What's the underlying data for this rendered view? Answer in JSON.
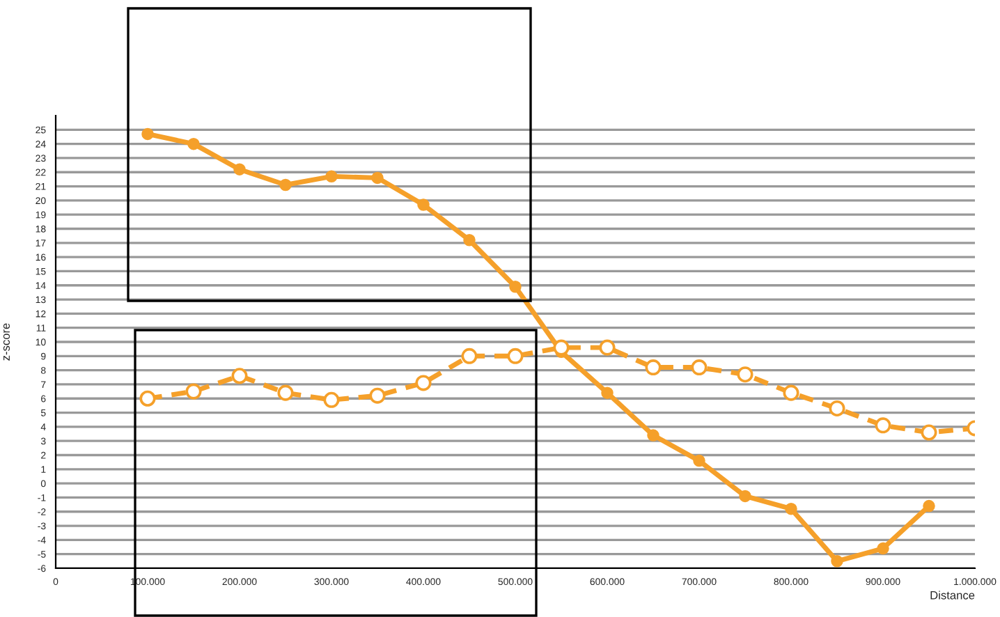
{
  "chart_data": {
    "type": "line",
    "xlabel": "Distance",
    "ylabel": "z-score",
    "x": [
      100000,
      150000,
      200000,
      250000,
      300000,
      350000,
      400000,
      450000,
      500000,
      550000,
      600000,
      650000,
      700000,
      750000,
      800000,
      850000,
      900000,
      950000,
      1000000
    ],
    "series": [
      {
        "color": "#f5a02a",
        "line_style": "solid",
        "marker": "circle",
        "values": [
          24.7,
          24.0,
          22.2,
          21.1,
          21.7,
          21.6,
          19.7,
          17.2,
          13.9,
          9.3,
          6.4,
          3.4,
          1.6,
          -0.9,
          -1.8,
          -5.5,
          -4.6,
          -1.6,
          null
        ]
      },
      {
        "color": "#f5a02a",
        "line_style": "dashed",
        "marker": "circle",
        "values": [
          6.0,
          6.5,
          7.6,
          6.4,
          5.9,
          6.2,
          7.1,
          9.0,
          9.0,
          9.6,
          9.6,
          8.2,
          8.2,
          7.7,
          6.4,
          5.3,
          4.1,
          3.6,
          3.9
        ]
      }
    ],
    "xlim": [
      0,
      1000000
    ],
    "xticks": [
      0,
      {
        "value": 100000,
        "label": "100.000"
      },
      {
        "value": 200000,
        "label": "200.000"
      },
      {
        "value": 300000,
        "label": "300.000"
      },
      {
        "value": 400000,
        "label": "400.000"
      },
      {
        "value": 500000,
        "label": "500.000"
      },
      {
        "value": 600000,
        "label": "600.000"
      },
      {
        "value": 700000,
        "label": "700.000"
      },
      {
        "value": 800000,
        "label": "800.000"
      },
      {
        "value": 900000,
        "label": "900.000"
      },
      {
        "value": 1000000,
        "label": "1.000.000"
      }
    ],
    "ylim": [
      -6,
      26
    ],
    "yticks": [
      -6,
      -5,
      -4,
      -3,
      -2,
      -1,
      0,
      1,
      2,
      3,
      4,
      5,
      6,
      7,
      8,
      9,
      10,
      11,
      12,
      13,
      14,
      15,
      16,
      17,
      18,
      19,
      20,
      21,
      22,
      23,
      24,
      25
    ],
    "grid": "y"
  }
}
